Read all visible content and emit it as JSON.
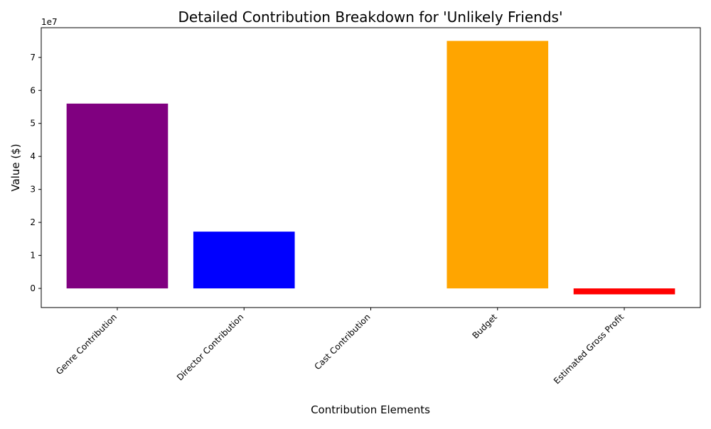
{
  "chart_data": {
    "type": "bar",
    "title": "Detailed Contribution Breakdown for 'Unlikely Friends'",
    "xlabel": "Contribution Elements",
    "ylabel": "Value ($)",
    "y_offset_label": "1e7",
    "categories": [
      "Genre Contribution",
      "Director Contribution",
      "Cast Contribution",
      "Budget",
      "Estimated Gross Profit"
    ],
    "values": [
      56000000,
      17200000,
      0,
      75000000,
      -1800000
    ],
    "colors": [
      "#800080",
      "#0000ff",
      "#008000",
      "#ffa500",
      "#ff0000"
    ],
    "ylim": [
      -5800000,
      79000000
    ],
    "yticks": [
      0,
      10000000,
      20000000,
      30000000,
      40000000,
      50000000,
      60000000,
      70000000
    ],
    "ytick_labels": [
      "0",
      "1",
      "2",
      "3",
      "4",
      "5",
      "6",
      "7"
    ],
    "grid": false,
    "legend": "none"
  }
}
